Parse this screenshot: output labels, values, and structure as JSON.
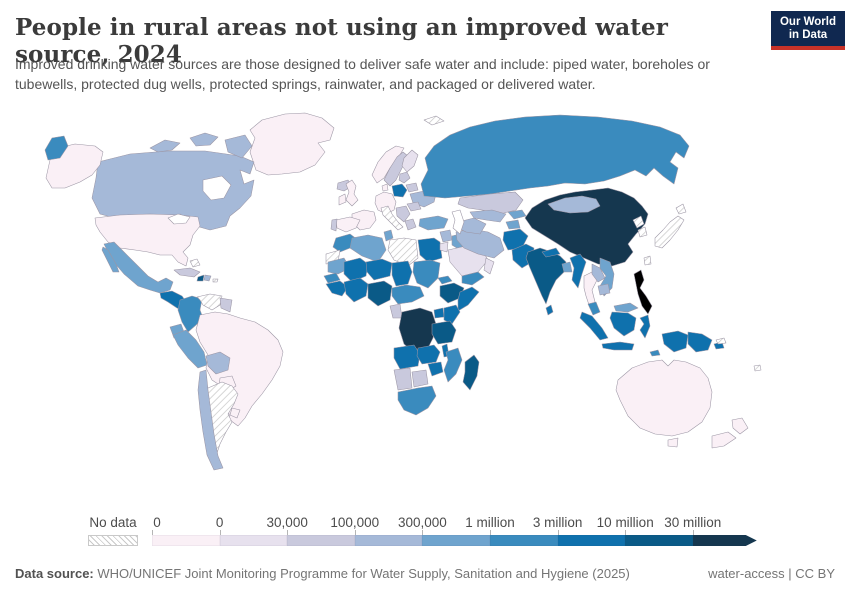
{
  "header": {
    "title": "People in rural areas not using an improved water source, 2024",
    "subtitle": "Improved drinking water sources are those designed to deliver safe water and include: piped water, boreholes or tubewells, protected dug wells, protected springs, rainwater, and packaged or delivered water.",
    "logo": {
      "line1": "Our World",
      "line2": "in Data",
      "bg_color": "#102850",
      "accent_color": "#c83228"
    }
  },
  "legend": {
    "no_data_label": "No data",
    "tick_labels": [
      "0",
      "0",
      "30,000",
      "100,000",
      "300,000",
      "1 million",
      "3 million",
      "10 million",
      "30 million"
    ],
    "bin_colors": [
      "#faf0f6",
      "#e7e1ee",
      "#c9c9dd",
      "#a5b9d8",
      "#6fa4ce",
      "#3a8bbe",
      "#0f71ad",
      "#0a5a87",
      "#15374f"
    ]
  },
  "footer": {
    "source_label": "Data source:",
    "source_text": " WHO/UNICEF Joint Monitoring Programme for Water Supply, Sanitation and Hygiene (2025)",
    "note_right": "water-access | CC BY"
  },
  "chart_data": {
    "type": "heatmap",
    "subtype": "choropleth-world-map",
    "title": "People in rural areas not using an improved water source, 2024",
    "unit": "people",
    "legend_position": "bottom",
    "bins": [
      "0",
      "0-30,000",
      "30,000-100,000",
      "100,000-300,000",
      "300,000-1 million",
      "1-3 million",
      "3-10 million",
      "10-30 million",
      "more than 30 million"
    ],
    "bin_colors": [
      "#faf0f6",
      "#e7e1ee",
      "#c9c9dd",
      "#a5b9d8",
      "#6fa4ce",
      "#3a8bbe",
      "#0f71ad",
      "#0a5a87",
      "#15374f"
    ],
    "no_data_style": "diagonal-hatch",
    "region_bins": {
      "greenland": 0,
      "canada": 3,
      "usa": 0,
      "mexico": 4,
      "guatemala-honduras-nicaragua": 6,
      "costa-rica-panama": 5,
      "cuba": 2,
      "haiti": 7,
      "dominican-republic": 3,
      "bahamas": "nodata",
      "puerto-rico": "nodata",
      "colombia": 5,
      "venezuela": "nodata",
      "guyana-suriname": 2,
      "ecuador": 4,
      "peru": 4,
      "brazil": 0,
      "bolivia": 3,
      "paraguay": 0,
      "uruguay": 0,
      "chile": 3,
      "argentina": "nodata",
      "iceland": 2,
      "norway": 0,
      "sweden": 2,
      "finland": 1,
      "uk": 0,
      "ireland": 0,
      "france": 0,
      "spain": 0,
      "portugal": 2,
      "germany-central-europe": 0,
      "denmark": 0,
      "poland": 6,
      "baltics": 2,
      "belarus": 2,
      "ukraine": 3,
      "romania-moldova": 2,
      "balkans": 2,
      "greece": 2,
      "italy": "nodata",
      "svalbard": "nodata",
      "morocco": 5,
      "western-sahara": "nodata",
      "algeria": 4,
      "tunisia": 4,
      "libya": "nodata",
      "egypt": 6,
      "mauritania": 4,
      "senegal": 5,
      "guinea-group": 6,
      "west-coast-group": 6,
      "mali": 6,
      "niger": 6,
      "nigeria": 7,
      "chad": 6,
      "cameroon-car": 5,
      "sudan": 5,
      "eritrea": 5,
      "ethiopia": 7,
      "somalia": 6,
      "uganda": 6,
      "kenya": 6,
      "drc": 8,
      "gabon-congo": 2,
      "tanzania": 7,
      "angola": 6,
      "zambia": 6,
      "malawi": 6,
      "mozambique": 5,
      "zimbabwe": 6,
      "namibia": 2,
      "botswana": 2,
      "south-africa": 5,
      "madagascar": 7,
      "turkey": 4,
      "syria-levant": 3,
      "iraq": 4,
      "jordan-israel": 1,
      "saudi-arabia": 1,
      "yemen": 5,
      "oman": 1,
      "iran": 3,
      "afghanistan": 6,
      "pakistan": 6,
      "russia": 5,
      "kazakhstan": 2,
      "uzbekistan": 3,
      "turkmenistan": 3,
      "kyrgyzstan": 4,
      "tajikistan": 4,
      "china": 8,
      "mongolia": 3,
      "north-korea": "nodata",
      "south-korea": "nodata",
      "japan": "nodata",
      "taiwan": "nodata",
      "nepal": 6,
      "india": 7,
      "bangladesh": 4,
      "sri-lanka": 6,
      "myanmar": 6,
      "thailand": 0,
      "laos": 3,
      "vietnam": 4,
      "cambodia": 3,
      "malaysia": 5,
      "malaysia-borneo": 4,
      "indonesia": 6,
      "timor-leste": 5,
      "png": 6,
      "solomon-islands": "nodata",
      "fiji": "nodata",
      "australia": 0,
      "tasmania": 0,
      "new-zealand": 0
    }
  }
}
